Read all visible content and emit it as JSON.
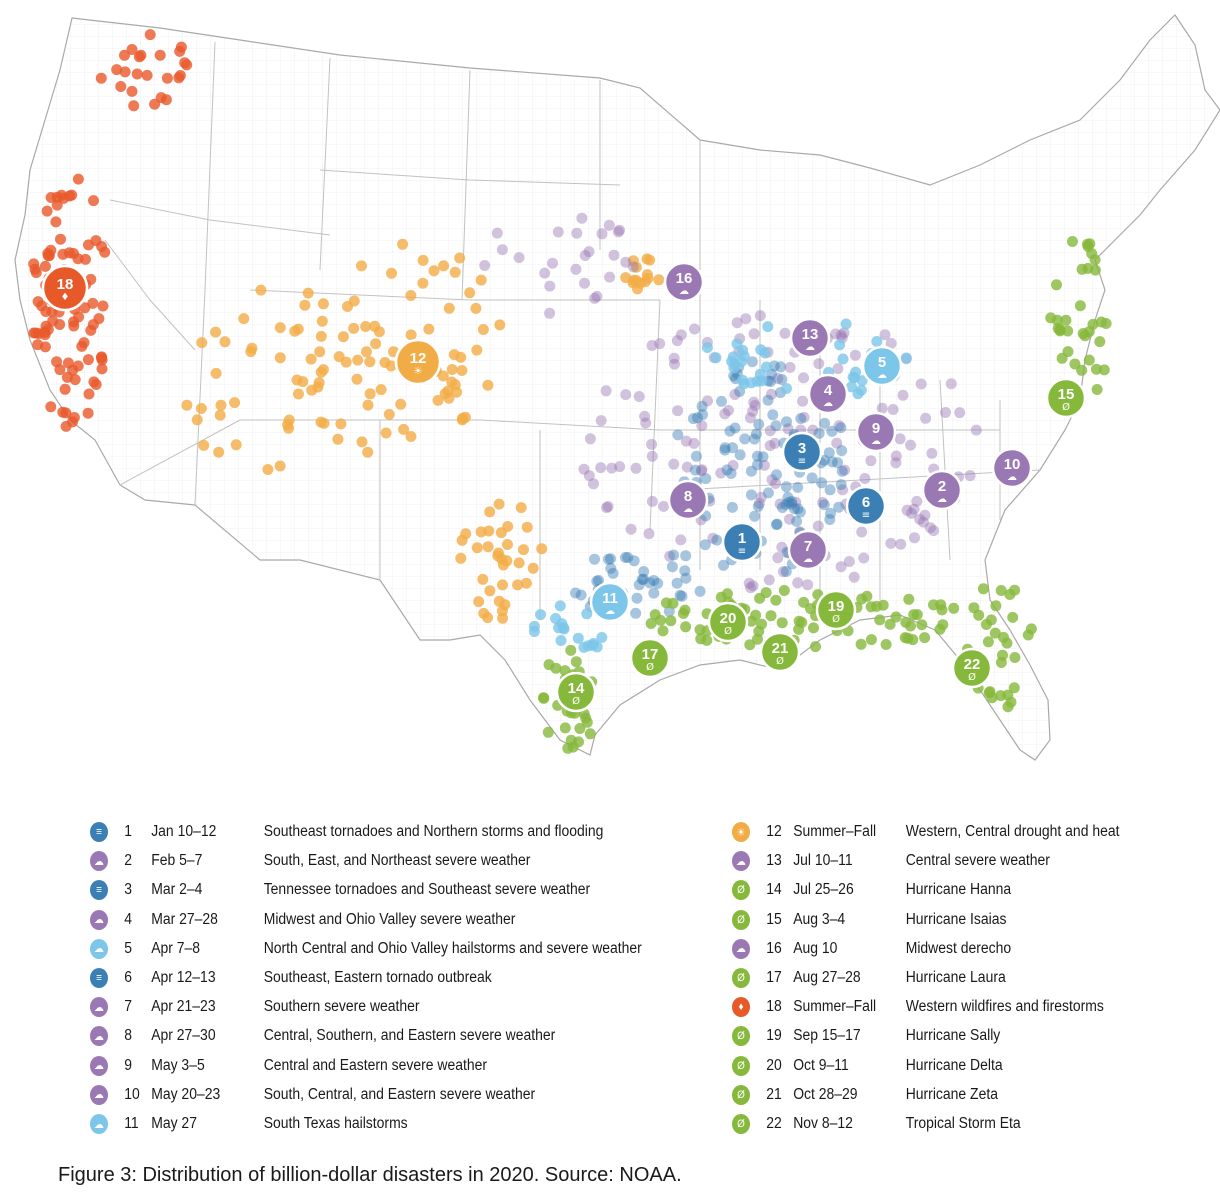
{
  "caption": "Figure 3: Distribution of billion-dollar disasters in 2020. Source: NOAA.",
  "colors": {
    "tornado": "#3c7fb5",
    "severe": "#9a78b4",
    "hail": "#7cc6ea",
    "drought": "#f2ac46",
    "wildfire": "#e8592a",
    "hurricane": "#86b83b",
    "state_line": "#b9b9b9",
    "county_line": "#e2e2e2",
    "land": "#ffffff"
  },
  "icons": {
    "tornado": "tornado-icon",
    "severe": "storm-cloud-icon",
    "hail": "hail-cloud-icon",
    "drought": "sun-drought-icon",
    "wildfire": "flame-icon",
    "hurricane": "hurricane-icon"
  },
  "events": [
    {
      "id": "1",
      "date": "Jan 10–12",
      "desc": "Southeast tornadoes and Northern storms and flooding",
      "type": "tornado"
    },
    {
      "id": "2",
      "date": "Feb 5–7",
      "desc": "South, East, and Northeast severe weather",
      "type": "severe"
    },
    {
      "id": "3",
      "date": "Mar 2–4",
      "desc": "Tennessee tornadoes and Southeast severe weather",
      "type": "tornado"
    },
    {
      "id": "4",
      "date": "Mar 27–28",
      "desc": "Midwest and Ohio Valley severe weather",
      "type": "severe"
    },
    {
      "id": "5",
      "date": "Apr 7–8",
      "desc": "North Central and Ohio Valley hailstorms and severe weather",
      "type": "hail"
    },
    {
      "id": "6",
      "date": "Apr 12–13",
      "desc": "Southeast, Eastern tornado outbreak",
      "type": "tornado"
    },
    {
      "id": "7",
      "date": "Apr 21–23",
      "desc": "Southern severe weather",
      "type": "severe"
    },
    {
      "id": "8",
      "date": "Apr 27–30",
      "desc": "Central, Southern, and Eastern severe weather",
      "type": "severe"
    },
    {
      "id": "9",
      "date": "May 3–5",
      "desc": "Central and Eastern severe weather",
      "type": "severe"
    },
    {
      "id": "10",
      "date": "May 20–23",
      "desc": "South, Central, and Eastern severe weather",
      "type": "severe"
    },
    {
      "id": "11",
      "date": "May 27",
      "desc": "South Texas hailstorms",
      "type": "hail"
    },
    {
      "id": "12",
      "date": "Summer–Fall",
      "desc": "Western, Central drought and heat",
      "type": "drought"
    },
    {
      "id": "13",
      "date": "Jul 10–11",
      "desc": "Central severe weather",
      "type": "severe"
    },
    {
      "id": "14",
      "date": "Jul 25–26",
      "desc": "Hurricane Hanna",
      "type": "hurricane"
    },
    {
      "id": "15",
      "date": "Aug 3–4",
      "desc": "Hurricane Isaias",
      "type": "hurricane"
    },
    {
      "id": "16",
      "date": "Aug 10",
      "desc": "Midwest derecho",
      "type": "severe"
    },
    {
      "id": "17",
      "date": "Aug 27–28",
      "desc": "Hurricane Laura",
      "type": "hurricane"
    },
    {
      "id": "18",
      "date": "Summer–Fall",
      "desc": "Western wildfires and firestorms",
      "type": "wildfire"
    },
    {
      "id": "19",
      "date": "Sep 15–17",
      "desc": "Hurricane Sally",
      "type": "hurricane"
    },
    {
      "id": "20",
      "date": "Oct 9–11",
      "desc": "Hurricane Delta",
      "type": "hurricane"
    },
    {
      "id": "21",
      "date": "Oct 28–29",
      "desc": "Hurricane Zeta",
      "type": "hurricane"
    },
    {
      "id": "22",
      "date": "Nov 8–12",
      "desc": "Tropical Storm Eta",
      "type": "hurricane"
    }
  ]
}
